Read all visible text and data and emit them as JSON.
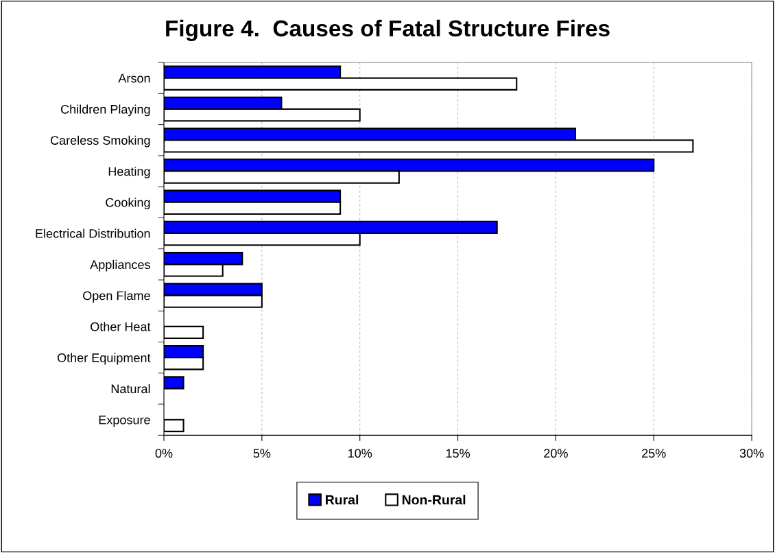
{
  "chart_data": {
    "type": "bar",
    "orientation": "horizontal",
    "title": "Figure 4.  Causes of Fatal Structure Fires",
    "categories": [
      "Arson",
      "Children Playing",
      "Careless Smoking",
      "Heating",
      "Cooking",
      "Electrical Distribution",
      "Appliances",
      "Open Flame",
      "Other Heat",
      "Other Equipment",
      "Natural",
      "Exposure"
    ],
    "series": [
      {
        "name": "Rural",
        "color": "#0000ff",
        "values": [
          9,
          6,
          21,
          25,
          9,
          17,
          4,
          5,
          null,
          2,
          1,
          null
        ]
      },
      {
        "name": "Non-Rural",
        "color": "#ffffff",
        "values": [
          18,
          10,
          27,
          12,
          9,
          10,
          3,
          5,
          2,
          2,
          null,
          1
        ]
      }
    ],
    "xlim": [
      0,
      30
    ],
    "xticks": [
      {
        "value": 0,
        "label": "0%"
      },
      {
        "value": 5,
        "label": "5%"
      },
      {
        "value": 10,
        "label": "10%"
      },
      {
        "value": 15,
        "label": "15%"
      },
      {
        "value": 20,
        "label": "20%"
      },
      {
        "value": 25,
        "label": "25%"
      },
      {
        "value": 30,
        "label": "30%"
      }
    ],
    "grid": "x",
    "legend": "bottom"
  }
}
